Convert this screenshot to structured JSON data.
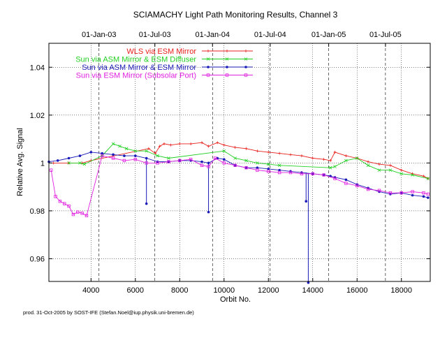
{
  "footer": "prod. 31-Oct-2005 by SOST-IFE (Stefan.Noel@iup.physik.uni-bremen.de)",
  "chart_data": {
    "type": "line",
    "title": "SCIAMACHY Light Path Monitoring Results, Channel 3",
    "xlabel": "Orbit No.",
    "ylabel": "Relative Avg. Signal",
    "xlim": [
      2100,
      19300
    ],
    "ylim": [
      0.9505,
      1.05
    ],
    "x_ticks": [
      4000,
      6000,
      8000,
      10000,
      12000,
      14000,
      16000,
      18000
    ],
    "y_ticks": [
      0.96,
      0.98,
      1,
      1.02,
      1.04
    ],
    "y_tick_labels": [
      "0.96",
      "0.98",
      "1",
      "1.02",
      "1.04"
    ],
    "grid": true,
    "top_axis": {
      "labels": [
        "01-Jan-03",
        "01-Jul-03",
        "01-Jan-04",
        "01-Jul-04",
        "01-Jan-05",
        "01-Jul-05"
      ],
      "orbits": [
        4360,
        6880,
        9480,
        12080,
        14720,
        17280
      ]
    },
    "legend_position": "top-right",
    "series": [
      {
        "name": "WLS via ESM Mirror",
        "color": "#e8201c",
        "marker": "plus",
        "x": [
          2300,
          3000,
          3600,
          4000,
          6600,
          6900,
          7100,
          7300,
          7600,
          8000,
          8500,
          9000,
          9300,
          9700,
          10000,
          10500,
          11000,
          11500,
          12000,
          12500,
          13000,
          13500,
          14000,
          14500,
          14800,
          15000,
          15500,
          16000,
          16500,
          17000,
          17500,
          18000,
          18500,
          19000,
          19200
        ],
        "y": [
          1.0,
          1.0,
          1.0,
          1.001,
          1.006,
          1.004,
          1.007,
          1.008,
          1.0075,
          1.008,
          1.008,
          1.0085,
          1.007,
          1.0085,
          1.0075,
          1.0065,
          1.006,
          1.005,
          1.0045,
          1.004,
          1.0035,
          1.003,
          1.002,
          1.0015,
          1.001,
          1.0045,
          1.003,
          1.002,
          1.0005,
          0.9995,
          0.999,
          0.997,
          0.9955,
          0.9945,
          0.9935
        ]
      },
      {
        "name": "Sun via ASM Mirror & ESM Diffuser",
        "color": "#22d022",
        "marker": "cross",
        "x": [
          3000,
          3500,
          3700,
          4500,
          5000,
          5300,
          5600,
          6000,
          6500,
          7000,
          7500,
          10000,
          10500,
          11000,
          11500,
          12000,
          12500,
          14800,
          15000,
          15500,
          16000,
          16500,
          17000,
          17500,
          18000,
          18500,
          19200
        ],
        "y": [
          1.0,
          1.0,
          0.9995,
          1.003,
          1.008,
          1.007,
          1.006,
          1.005,
          1.005,
          1.003,
          1.002,
          1.005,
          1.002,
          1.001,
          1.0,
          0.9995,
          0.999,
          0.998,
          0.9985,
          1.001,
          1.002,
          0.999,
          0.997,
          0.997,
          0.9955,
          0.995,
          0.9935
        ]
      },
      {
        "name": "Sun via ASM Mirror & ESM Mirror",
        "color": "#1a1ab8",
        "marker": "dot",
        "x": [
          2100,
          2500,
          3000,
          3500,
          4000,
          4500,
          5000,
          5500,
          6000,
          6500,
          7000,
          7500,
          8000,
          8500,
          9000,
          9300,
          9700,
          10000,
          10500,
          11000,
          11500,
          12000,
          12500,
          13000,
          13500,
          14000,
          14500,
          14800,
          15000,
          15500,
          16000,
          16500,
          17000,
          17500,
          18000,
          18500,
          19000,
          19200
        ],
        "y": [
          1.0005,
          1.001,
          1.002,
          1.003,
          1.0045,
          1.004,
          1.0035,
          1.003,
          1.003,
          1.002,
          1.0005,
          1.0005,
          1.001,
          1.001,
          1.0005,
          1.0,
          1.002,
          1.0015,
          0.999,
          0.998,
          0.998,
          0.9975,
          0.997,
          0.9965,
          0.996,
          0.9955,
          0.995,
          0.9945,
          0.994,
          0.993,
          0.991,
          0.9895,
          0.988,
          0.987,
          0.9875,
          0.9865,
          0.986,
          0.9855
        ],
        "dips": [
          [
            6500,
            0.983
          ],
          [
            9300,
            0.9795
          ],
          [
            13700,
            0.984
          ],
          [
            13800,
            0.95
          ]
        ]
      },
      {
        "name": "Sun via ESM Mirror (Subsolar Port)",
        "color": "#e020e0",
        "marker": "square",
        "x": [
          2200,
          2400,
          2600,
          2800,
          3000,
          3200,
          3400,
          3600,
          3800,
          4500,
          5000,
          5500,
          6000,
          6500,
          7000,
          7500,
          8000,
          8500,
          9000,
          9300,
          9600,
          10000,
          10500,
          11000,
          11500,
          12000,
          12500,
          13000,
          13500,
          14000,
          14500,
          15000,
          15500,
          16000,
          16500,
          17000,
          17500,
          18000,
          18500,
          19000,
          19200
        ],
        "y": [
          0.997,
          0.986,
          0.984,
          0.983,
          0.982,
          0.9785,
          0.9795,
          0.979,
          0.978,
          1.003,
          1.002,
          1.001,
          1.0015,
          1.0,
          1.0,
          1.0005,
          1.001,
          1.0015,
          0.999,
          0.9985,
          1.002,
          1.0,
          0.999,
          0.998,
          0.997,
          0.9965,
          0.996,
          0.996,
          0.9955,
          0.9955,
          0.995,
          0.9935,
          0.9915,
          0.9905,
          0.989,
          0.9885,
          0.9875,
          0.9875,
          0.988,
          0.9875,
          0.987
        ]
      }
    ]
  }
}
